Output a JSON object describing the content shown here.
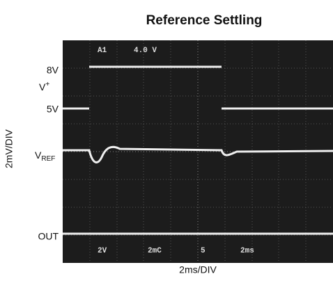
{
  "header": {
    "title": "Reference Settling"
  },
  "labels": {
    "v8": "8V",
    "vplus": {
      "main": "V",
      "sup": "+"
    },
    "v5": "5V",
    "vref": {
      "main": "V",
      "sub": "REF"
    },
    "out": "OUT",
    "y_axis": "2mV/DIV",
    "x_axis": "2ms/DIV"
  },
  "scope": {
    "top": [
      "A1",
      "4.0 V"
    ],
    "bottom": [
      "2V",
      "2mC",
      "5",
      "2ms"
    ]
  }
}
